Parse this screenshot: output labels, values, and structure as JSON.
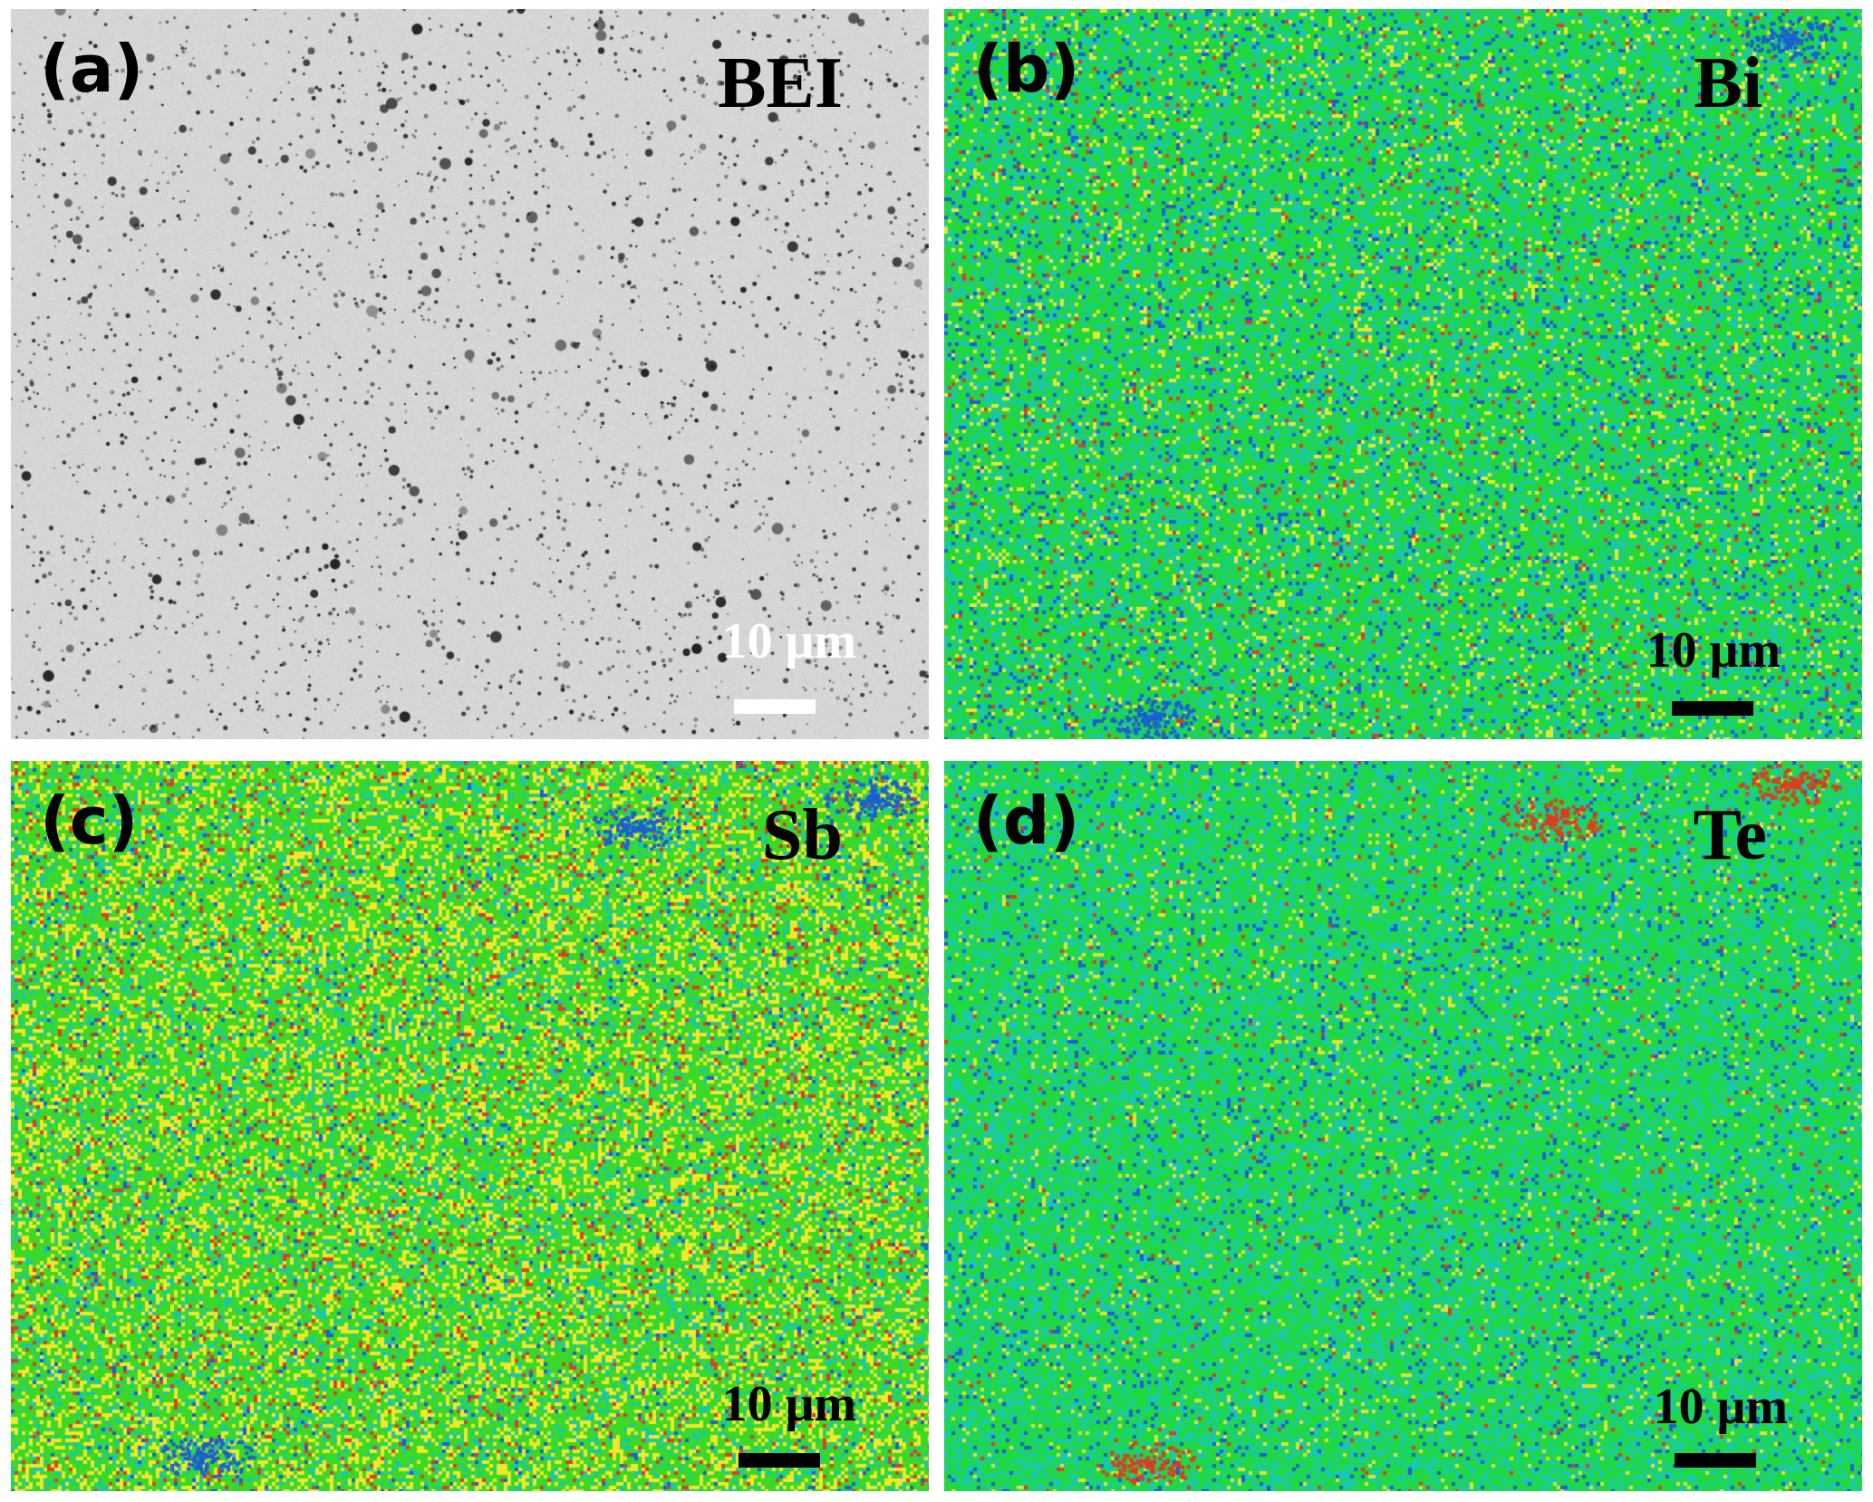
{
  "panels": [
    {
      "letter": "(a)",
      "label": "BEI",
      "scale": "10 μm",
      "kind": "sem",
      "colors": {
        "base": "#d6d6d6",
        "speck": "#1a1a1a",
        "scale_color": "#ffffff"
      }
    },
    {
      "letter": "(b)",
      "label": "Bi",
      "scale": "10 μm",
      "kind": "map",
      "colors": {
        "base": "#22d838",
        "cyan": "#18c8a8",
        "blue": "#1a60d0",
        "yellow": "#e8e830",
        "red": "#d84020",
        "scale_color": "#000000"
      }
    },
    {
      "letter": "(c)",
      "label": "Sb",
      "scale": "10 μm",
      "kind": "map",
      "colors": {
        "base": "#3ad828",
        "cyan": "#18c8a8",
        "blue": "#1a60d0",
        "yellow": "#f0e828",
        "red": "#d84020",
        "scale_color": "#000000"
      }
    },
    {
      "letter": "(d)",
      "label": "Te",
      "scale": "10 μm",
      "kind": "map",
      "colors": {
        "base": "#20d840",
        "cyan": "#18c8b0",
        "blue": "#1a60d0",
        "yellow": "#e0e430",
        "red": "#d84020",
        "scale_color": "#000000"
      }
    }
  ]
}
